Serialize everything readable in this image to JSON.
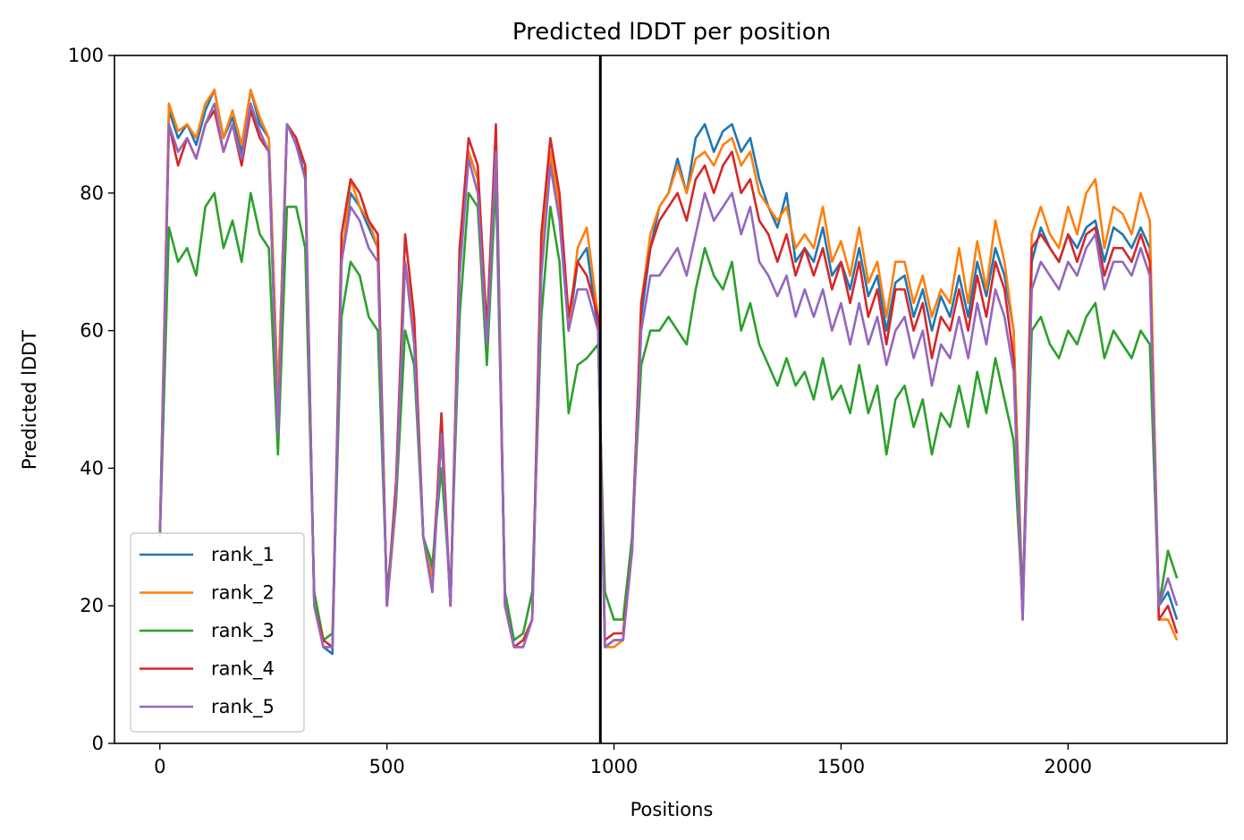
{
  "chart_data": {
    "type": "line",
    "title": "Predicted lDDT per position",
    "xlabel": "Positions",
    "ylabel": "Predicted lDDT",
    "xlim": [
      -100,
      2350
    ],
    "ylim": [
      0,
      100
    ],
    "xticks": [
      0,
      500,
      1000,
      1500,
      2000
    ],
    "yticks": [
      0,
      20,
      40,
      60,
      80,
      100
    ],
    "legend_position": "lower-left",
    "grid": false,
    "vline": {
      "x": 970,
      "color": "#000000"
    },
    "series_x": [
      0,
      20,
      40,
      60,
      80,
      100,
      120,
      140,
      160,
      180,
      200,
      220,
      240,
      260,
      280,
      300,
      320,
      340,
      360,
      380,
      400,
      420,
      440,
      460,
      480,
      500,
      520,
      540,
      560,
      580,
      600,
      620,
      640,
      660,
      680,
      700,
      720,
      740,
      760,
      780,
      800,
      820,
      840,
      860,
      880,
      900,
      920,
      940,
      965,
      980,
      1000,
      1020,
      1040,
      1060,
      1080,
      1100,
      1120,
      1140,
      1160,
      1180,
      1200,
      1220,
      1240,
      1260,
      1280,
      1300,
      1320,
      1340,
      1360,
      1380,
      1400,
      1420,
      1440,
      1460,
      1480,
      1500,
      1520,
      1540,
      1560,
      1580,
      1600,
      1620,
      1640,
      1660,
      1680,
      1700,
      1720,
      1740,
      1760,
      1780,
      1800,
      1820,
      1840,
      1860,
      1880,
      1900,
      1920,
      1940,
      1960,
      1980,
      2000,
      2020,
      2040,
      2060,
      2080,
      2100,
      2120,
      2140,
      2160,
      2180,
      2200,
      2220,
      2240
    ],
    "series": [
      {
        "name": "rank_1",
        "color": "#1f77b4",
        "values": [
          30,
          92,
          88,
          90,
          87,
          92,
          95,
          88,
          91,
          86,
          95,
          90,
          88,
          50,
          90,
          88,
          82,
          20,
          14,
          13,
          70,
          80,
          78,
          75,
          72,
          20,
          35,
          70,
          60,
          30,
          25,
          45,
          20,
          70,
          86,
          82,
          60,
          88,
          20,
          14,
          14,
          18,
          70,
          85,
          78,
          60,
          70,
          72,
          60,
          14,
          15,
          15,
          30,
          62,
          72,
          78,
          80,
          85,
          80,
          88,
          90,
          86,
          89,
          90,
          86,
          88,
          82,
          78,
          75,
          80,
          70,
          72,
          70,
          75,
          68,
          70,
          66,
          72,
          65,
          68,
          60,
          67,
          68,
          62,
          66,
          60,
          65,
          62,
          68,
          62,
          70,
          65,
          72,
          68,
          60,
          20,
          70,
          75,
          72,
          70,
          74,
          72,
          75,
          76,
          70,
          75,
          74,
          72,
          75,
          72,
          20,
          22,
          18
        ]
      },
      {
        "name": "rank_2",
        "color": "#ff7f0e",
        "values": [
          30,
          93,
          89,
          90,
          88,
          93,
          95,
          88,
          92,
          87,
          95,
          91,
          88,
          50,
          90,
          88,
          84,
          20,
          14,
          14,
          70,
          82,
          78,
          76,
          72,
          20,
          35,
          70,
          60,
          30,
          24,
          45,
          20,
          70,
          86,
          82,
          60,
          88,
          20,
          14,
          14,
          18,
          72,
          86,
          78,
          60,
          72,
          75,
          62,
          14,
          14,
          15,
          28,
          64,
          74,
          78,
          80,
          84,
          80,
          85,
          86,
          84,
          87,
          88,
          84,
          86,
          80,
          78,
          76,
          78,
          72,
          74,
          72,
          78,
          70,
          73,
          68,
          75,
          67,
          70,
          62,
          70,
          70,
          64,
          68,
          62,
          66,
          64,
          72,
          64,
          73,
          66,
          76,
          70,
          60,
          18,
          74,
          78,
          74,
          72,
          78,
          74,
          80,
          82,
          72,
          78,
          77,
          74,
          80,
          76,
          18,
          18,
          15
        ]
      },
      {
        "name": "rank_3",
        "color": "#2ca02c",
        "values": [
          30,
          75,
          70,
          72,
          68,
          78,
          80,
          72,
          76,
          70,
          80,
          74,
          72,
          42,
          78,
          78,
          72,
          22,
          15,
          16,
          62,
          70,
          68,
          62,
          60,
          22,
          35,
          60,
          55,
          30,
          26,
          40,
          22,
          62,
          80,
          78,
          55,
          82,
          22,
          15,
          16,
          22,
          62,
          78,
          70,
          48,
          55,
          56,
          58,
          22,
          18,
          18,
          30,
          55,
          60,
          60,
          62,
          60,
          58,
          66,
          72,
          68,
          66,
          70,
          60,
          64,
          58,
          55,
          52,
          56,
          52,
          54,
          50,
          56,
          50,
          52,
          48,
          55,
          48,
          52,
          42,
          50,
          52,
          46,
          50,
          42,
          48,
          46,
          52,
          46,
          54,
          48,
          56,
          50,
          44,
          20,
          60,
          62,
          58,
          56,
          60,
          58,
          62,
          64,
          56,
          60,
          58,
          56,
          60,
          58,
          20,
          28,
          24
        ]
      },
      {
        "name": "rank_4",
        "color": "#d62728",
        "values": [
          30,
          90,
          84,
          88,
          85,
          90,
          92,
          86,
          90,
          84,
          92,
          88,
          86,
          45,
          90,
          88,
          84,
          20,
          15,
          14,
          74,
          82,
          80,
          76,
          74,
          20,
          38,
          74,
          62,
          30,
          22,
          48,
          20,
          72,
          88,
          84,
          60,
          90,
          20,
          14,
          15,
          18,
          74,
          88,
          80,
          62,
          70,
          68,
          62,
          15,
          16,
          16,
          28,
          64,
          72,
          76,
          78,
          80,
          76,
          82,
          84,
          80,
          84,
          86,
          80,
          82,
          76,
          74,
          70,
          74,
          68,
          72,
          68,
          72,
          66,
          70,
          64,
          70,
          62,
          66,
          58,
          66,
          66,
          60,
          64,
          56,
          62,
          60,
          66,
          60,
          68,
          62,
          70,
          66,
          56,
          18,
          72,
          74,
          72,
          70,
          74,
          70,
          74,
          75,
          68,
          72,
          72,
          70,
          74,
          70,
          18,
          20,
          16
        ]
      },
      {
        "name": "rank_5",
        "color": "#9467bd",
        "values": [
          30,
          90,
          86,
          88,
          85,
          90,
          93,
          86,
          90,
          85,
          93,
          89,
          86,
          45,
          90,
          87,
          82,
          20,
          14,
          14,
          70,
          78,
          76,
          72,
          70,
          20,
          36,
          70,
          58,
          30,
          22,
          45,
          20,
          68,
          85,
          80,
          58,
          86,
          20,
          14,
          14,
          18,
          68,
          84,
          76,
          60,
          66,
          66,
          60,
          14,
          15,
          15,
          28,
          60,
          68,
          68,
          70,
          72,
          68,
          74,
          80,
          76,
          78,
          80,
          74,
          78,
          70,
          68,
          65,
          68,
          62,
          66,
          62,
          66,
          60,
          64,
          58,
          64,
          58,
          62,
          55,
          60,
          62,
          56,
          60,
          52,
          58,
          56,
          62,
          56,
          64,
          58,
          66,
          62,
          54,
          18,
          66,
          70,
          68,
          66,
          70,
          68,
          72,
          74,
          66,
          70,
          70,
          68,
          72,
          68,
          20,
          24,
          20
        ]
      }
    ]
  }
}
